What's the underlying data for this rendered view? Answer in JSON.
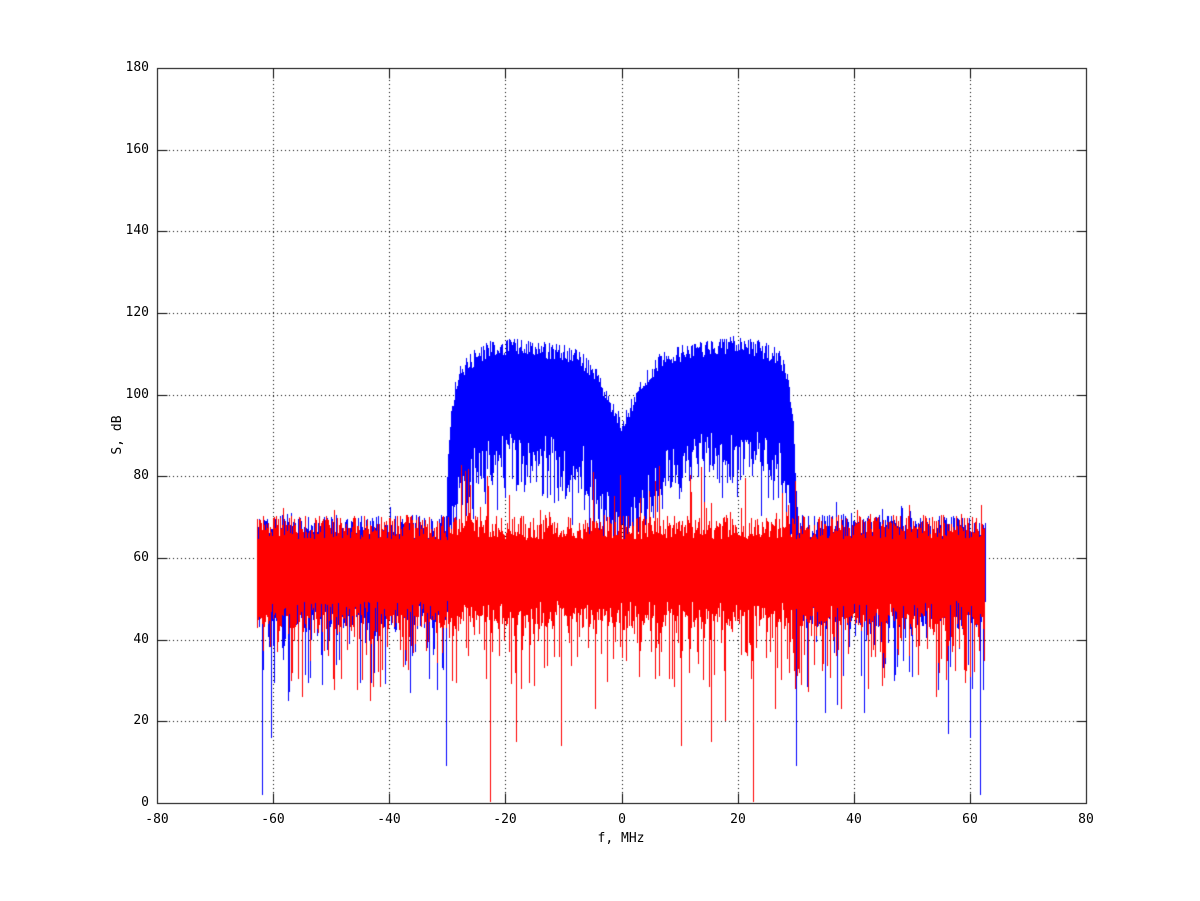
{
  "chart_data": {
    "type": "line",
    "title": "",
    "xlabel": "f, MHz",
    "ylabel": "S, dB",
    "xlim": [
      -80,
      80
    ],
    "ylim": [
      0,
      180
    ],
    "xticks": [
      -80,
      -60,
      -40,
      -20,
      0,
      20,
      40,
      60,
      80
    ],
    "yticks": [
      0,
      20,
      40,
      60,
      80,
      100,
      120,
      140,
      160,
      180
    ],
    "grid": true,
    "legend": null,
    "background": "#ffffff",
    "axis_color": "#000000",
    "render_seed": 11,
    "series": [
      {
        "id": "signal-spectrum-blue",
        "color": "#0000ff",
        "draw_order": 1,
        "band_mhz": [
          -62.7,
          62.65
        ],
        "noise_floor": {
          "top_db": 67.5,
          "top_jitter_db": 3,
          "top_spike_prob": 0.08,
          "top_spike_extra_db": 4,
          "solid_bottom_db": 46,
          "bottom_jitter_db": 3.5,
          "spike_prob": 0.5,
          "spike_depth_db": [
            27,
            46
          ]
        },
        "signal_band": {
          "range_mhz": [
            -30.3,
            30.3
          ],
          "envelope_top_db": [
            [
              -30.3,
              70
            ],
            [
              -29.7,
              90
            ],
            [
              -28.8,
              101
            ],
            [
              -27.5,
              106.5
            ],
            [
              -25,
              109.5
            ],
            [
              -22,
              111.5
            ],
            [
              -19,
              112
            ],
            [
              -15,
              111
            ],
            [
              -11,
              110.5
            ],
            [
              -8,
              109.5
            ],
            [
              -6,
              107.5
            ],
            [
              -4.2,
              104
            ],
            [
              -2.6,
              100
            ],
            [
              -1.2,
              95.5
            ],
            [
              0,
              92.5
            ],
            [
              1.2,
              95.5
            ],
            [
              2.6,
              100
            ],
            [
              4.2,
              104
            ],
            [
              6,
              107.5
            ],
            [
              8,
              109.5
            ],
            [
              11,
              110.5
            ],
            [
              15,
              111.5
            ],
            [
              19,
              112.5
            ],
            [
              22,
              112
            ],
            [
              25,
              110.5
            ],
            [
              27,
              109.5
            ],
            [
              28.6,
              103.5
            ],
            [
              29.6,
              91
            ],
            [
              30.3,
              70
            ]
          ],
          "top_jitter_db": 2.2,
          "mass_thickness_db": [
            22,
            36
          ],
          "deep_min_prob": 0.17,
          "deep_min_extra_db": 9
        },
        "deep_spikes_f_db": [
          [
            -61.9,
            2
          ],
          [
            -60.3,
            16
          ],
          [
            -57.5,
            25
          ],
          [
            -36.4,
            27
          ],
          [
            -30.2,
            9
          ],
          [
            30.0,
            9
          ],
          [
            35.1,
            22
          ],
          [
            37.1,
            24
          ],
          [
            41.7,
            22
          ],
          [
            56.2,
            17
          ],
          [
            60.1,
            16
          ],
          [
            61.7,
            2
          ]
        ]
      },
      {
        "id": "noise-spectrum-red",
        "color": "#ff0000",
        "draw_order": 2,
        "band_mhz": [
          -62.85,
          62.6
        ],
        "noise_floor": {
          "top_db": 67.5,
          "top_jitter_db": 3,
          "top_spike_prob": 0.08,
          "top_spike_extra_db": 4,
          "solid_bottom_db": 46,
          "bottom_jitter_db": 3.5,
          "spike_prob": 0.5,
          "spike_depth_db": [
            27,
            46
          ]
        },
        "inband_up_spikes": {
          "range_mhz": [
            -30,
            30
          ],
          "prob": 0.07,
          "top_db_range": [
            72,
            85
          ]
        },
        "deep_spikes_f_db": [
          [
            -55.0,
            26
          ],
          [
            -43.3,
            25
          ],
          [
            -22.6,
            0.3
          ],
          [
            -18.1,
            15
          ],
          [
            -10.5,
            14
          ],
          [
            -4.5,
            23
          ],
          [
            10.2,
            14
          ],
          [
            15.5,
            15
          ],
          [
            17.9,
            20
          ],
          [
            22.6,
            0.3
          ],
          [
            26.4,
            23
          ],
          [
            37.8,
            23
          ],
          [
            54.1,
            26
          ]
        ]
      }
    ]
  }
}
